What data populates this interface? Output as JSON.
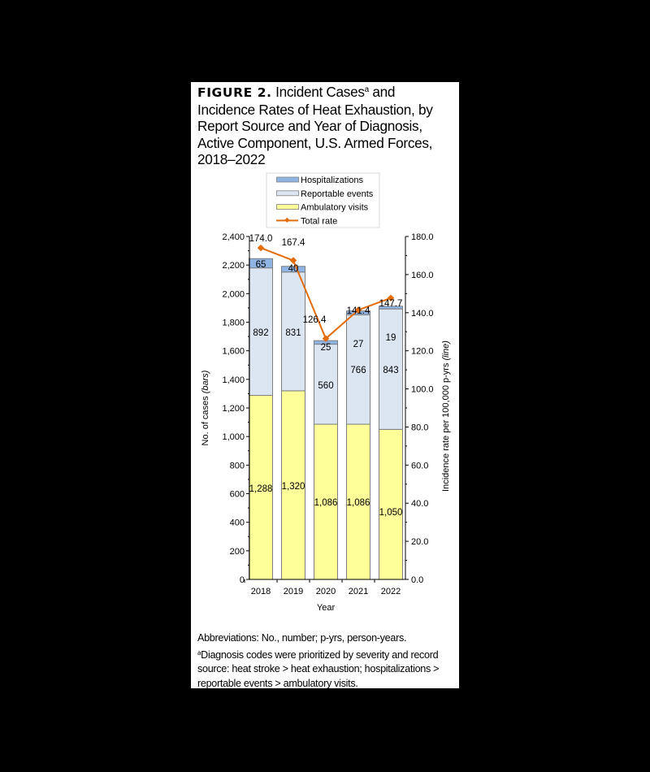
{
  "figure": {
    "label": "FIGURE 2.",
    "title_part1": "Incident Cases",
    "title_sup": "a",
    "title_part2": "and Incidence Rates of Heat Exhaustion, by Report Source and Year of Diagnosis, Active Component, U.S. Armed Forces, 2018–2022"
  },
  "notes": {
    "abbreviations": "Abbreviations: No., number; p-yrs, person-years.",
    "footnote_marker": "a",
    "footnote": "Diagnosis codes were prioritized by severity and record source: heat stroke > heat exhaustion; hospitalizations > reportable events > ambulatory visits."
  },
  "colors": {
    "hospitalizations": "#8EB4E3",
    "reportable_events": "#DCE6F2",
    "ambulatory_visits": "#FFFF99",
    "total_rate": "#E46C0A",
    "bar_border": "#7F7F7F"
  },
  "chart_data": {
    "type": "bar",
    "subtype": "stacked bar with line on secondary axis",
    "title": "Incident Cases and Incidence Rates of Heat Exhaustion, by Report Source and Year of Diagnosis, Active Component, U.S. Armed Forces, 2018–2022",
    "categories": [
      "2018",
      "2019",
      "2020",
      "2021",
      "2022"
    ],
    "series": [
      {
        "name": "Ambulatory visits",
        "type": "bar",
        "axis": "left",
        "values": [
          1288,
          1320,
          1086,
          1086,
          1050
        ],
        "labels": [
          "1,288",
          "1,320",
          "1,086",
          "1,086",
          "1,050"
        ]
      },
      {
        "name": "Reportable events",
        "type": "bar",
        "axis": "left",
        "values": [
          892,
          831,
          560,
          766,
          843
        ],
        "labels": [
          "892",
          "831",
          "560",
          "766",
          "843"
        ]
      },
      {
        "name": "Hospitalizations",
        "type": "bar",
        "axis": "left",
        "values": [
          65,
          40,
          25,
          27,
          19
        ],
        "labels": [
          "65",
          "40",
          "25",
          "27",
          "19"
        ]
      },
      {
        "name": "Total rate",
        "type": "line",
        "axis": "right",
        "values": [
          174.0,
          167.4,
          126.4,
          141.4,
          147.7
        ],
        "labels": [
          "174.0",
          "167.4",
          "126.4",
          "141.4",
          "147.7"
        ]
      }
    ],
    "legend": [
      "Hospitalizations",
      "Reportable events",
      "Ambulatory visits",
      "Total rate"
    ],
    "legend_position": "top",
    "xlabel": "Year",
    "ylabel": "No. of cases (bars)",
    "ylabel_main": "No. of cases ",
    "ylabel_italic": "(bars)",
    "y2label": "Incidence rate per 100,000 p-yrs (line)",
    "y2label_main": "Incidence rate per 100,000 p-yrs ",
    "y2label_italic": "(line)",
    "ylim": [
      0,
      2400
    ],
    "y2lim": [
      0,
      180
    ],
    "yticks": [
      "0",
      "200",
      "400",
      "600",
      "800",
      "1,000",
      "1,200",
      "1,400",
      "1,600",
      "1,800",
      "2,000",
      "2,200",
      "2,400"
    ],
    "y2ticks": [
      "0.0",
      "20.0",
      "40.0",
      "60.0",
      "80.0",
      "100.0",
      "120.0",
      "140.0",
      "160.0",
      "180.0"
    ],
    "grid": false
  }
}
